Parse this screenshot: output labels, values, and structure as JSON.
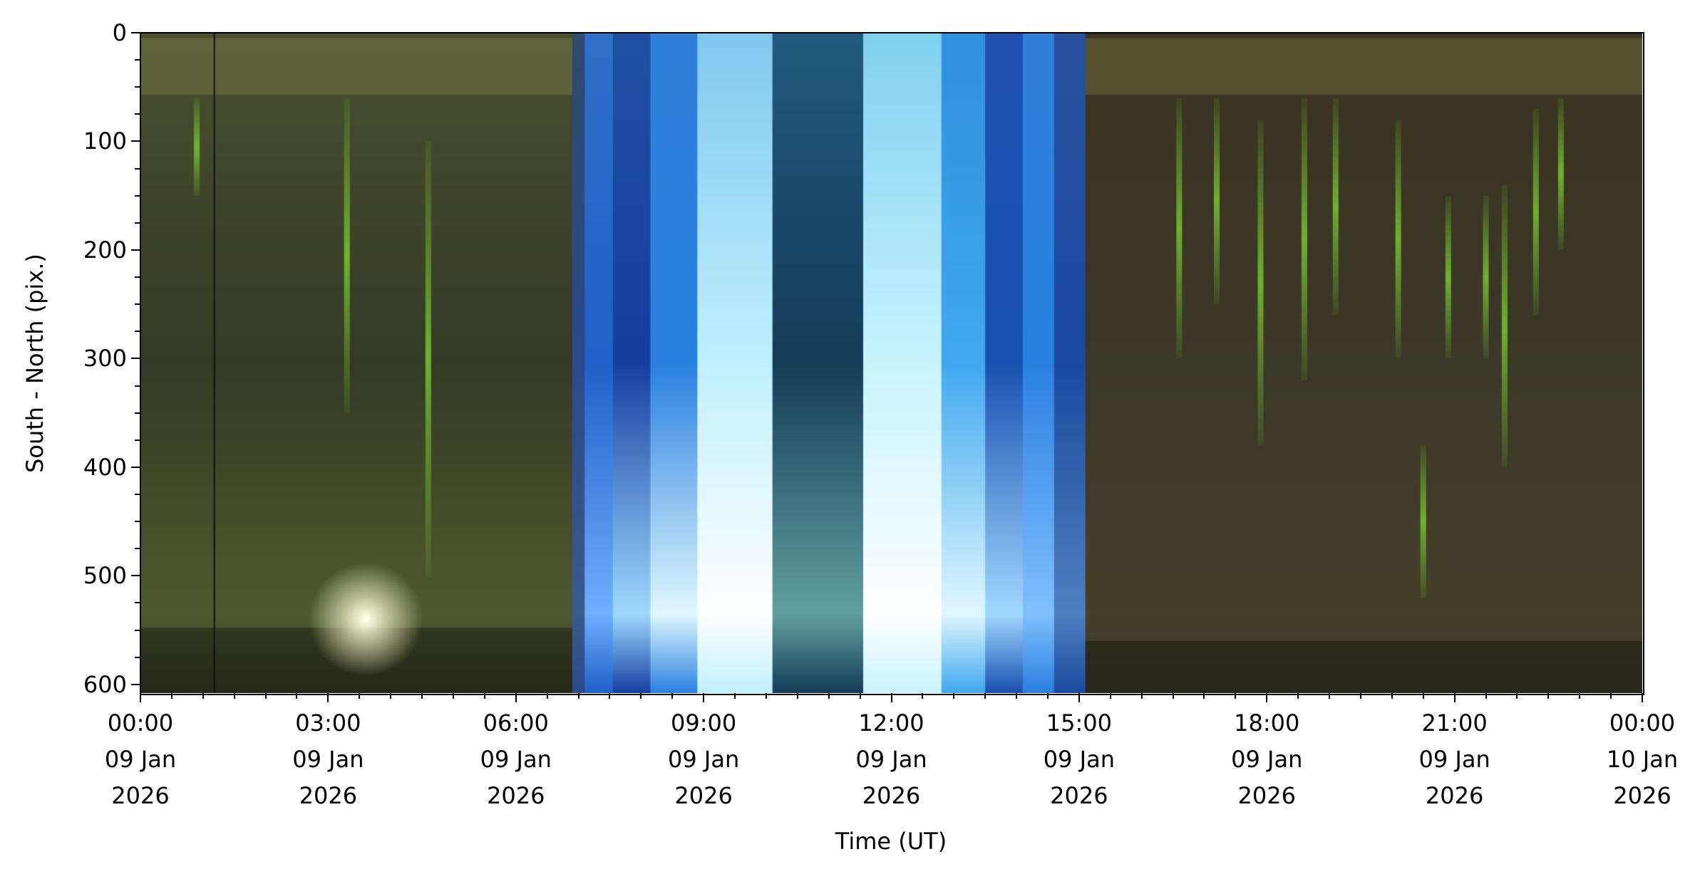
{
  "chart_data": {
    "type": "heatmap",
    "title": "",
    "xlabel": "Time (UT)",
    "ylabel": "South - North (pix.)",
    "xlim_hours": [
      0,
      24
    ],
    "ylim": [
      608,
      0
    ],
    "x_ticks": [
      {
        "hour": 0,
        "time": "00:00",
        "date": "09 Jan",
        "year": "2026"
      },
      {
        "hour": 3,
        "time": "03:00",
        "date": "09 Jan",
        "year": "2026"
      },
      {
        "hour": 6,
        "time": "06:00",
        "date": "09 Jan",
        "year": "2026"
      },
      {
        "hour": 9,
        "time": "09:00",
        "date": "09 Jan",
        "year": "2026"
      },
      {
        "hour": 12,
        "time": "12:00",
        "date": "09 Jan",
        "year": "2026"
      },
      {
        "hour": 15,
        "time": "15:00",
        "date": "09 Jan",
        "year": "2026"
      },
      {
        "hour": 18,
        "time": "18:00",
        "date": "09 Jan",
        "year": "2026"
      },
      {
        "hour": 21,
        "time": "21:00",
        "date": "09 Jan",
        "year": "2026"
      },
      {
        "hour": 24,
        "time": "00:00",
        "date": "10 Jan",
        "year": "2026"
      }
    ],
    "y_ticks": [
      0,
      100,
      200,
      300,
      400,
      500,
      600
    ],
    "bands": [
      {
        "start": 0,
        "end": 6.9,
        "top": "#4a5030",
        "mid": "#353a24",
        "bottom": "#4e5a2e"
      },
      {
        "start": 6.9,
        "end": 7.1,
        "top": "#304a70",
        "mid": "#2a4a8a",
        "bottom": "#3a5a90"
      },
      {
        "start": 7.1,
        "end": 7.55,
        "top": "#3070c8",
        "mid": "#2060c8",
        "bottom": "#70b0ff"
      },
      {
        "start": 7.55,
        "end": 8.15,
        "top": "#2050a0",
        "mid": "#1440a0",
        "bottom": "#a0d8ff"
      },
      {
        "start": 8.15,
        "end": 8.9,
        "top": "#3080d8",
        "mid": "#2a80e0",
        "bottom": "#e0f8ff"
      },
      {
        "start": 8.9,
        "end": 10.1,
        "top": "#80c8f0",
        "mid": "#c0f0ff",
        "bottom": "#ffffff"
      },
      {
        "start": 10.1,
        "end": 11.55,
        "top": "#205a80",
        "mid": "#153c58",
        "bottom": "#60a0a0"
      },
      {
        "start": 11.55,
        "end": 12.8,
        "top": "#80d0f0",
        "mid": "#c8f4ff",
        "bottom": "#ffffff"
      },
      {
        "start": 12.8,
        "end": 13.5,
        "top": "#3090e0",
        "mid": "#40a8f0",
        "bottom": "#e0f8ff"
      },
      {
        "start": 13.5,
        "end": 14.1,
        "top": "#2050b0",
        "mid": "#1a50b0",
        "bottom": "#a0d8ff"
      },
      {
        "start": 14.1,
        "end": 14.6,
        "top": "#3080d8",
        "mid": "#2a80e0",
        "bottom": "#80c0ff"
      },
      {
        "start": 14.6,
        "end": 15.1,
        "top": "#2a50a0",
        "mid": "#1a4aa0",
        "bottom": "#5080c0"
      },
      {
        "start": 15.1,
        "end": 24,
        "top": "#3a3420",
        "mid": "#3a3828",
        "bottom": "#46402a"
      }
    ],
    "aurora_streaks": [
      {
        "hour": 16.6,
        "y0": 60,
        "y1": 300
      },
      {
        "hour": 17.2,
        "y0": 60,
        "y1": 250
      },
      {
        "hour": 17.9,
        "y0": 80,
        "y1": 380
      },
      {
        "hour": 18.6,
        "y0": 60,
        "y1": 320
      },
      {
        "hour": 19.1,
        "y0": 60,
        "y1": 260
      },
      {
        "hour": 20.1,
        "y0": 80,
        "y1": 300
      },
      {
        "hour": 20.5,
        "y0": 380,
        "y1": 520
      },
      {
        "hour": 20.9,
        "y0": 150,
        "y1": 300
      },
      {
        "hour": 21.5,
        "y0": 150,
        "y1": 300
      },
      {
        "hour": 21.8,
        "y0": 140,
        "y1": 400
      },
      {
        "hour": 22.3,
        "y0": 70,
        "y1": 260
      },
      {
        "hour": 22.7,
        "y0": 60,
        "y1": 200
      },
      {
        "hour": 0.9,
        "y0": 60,
        "y1": 150
      },
      {
        "hour": 3.3,
        "y0": 60,
        "y1": 350
      },
      {
        "hour": 4.6,
        "y0": 100,
        "y1": 500
      }
    ],
    "colors": {
      "aurora": "#7cd030",
      "frame": "#000000"
    }
  }
}
